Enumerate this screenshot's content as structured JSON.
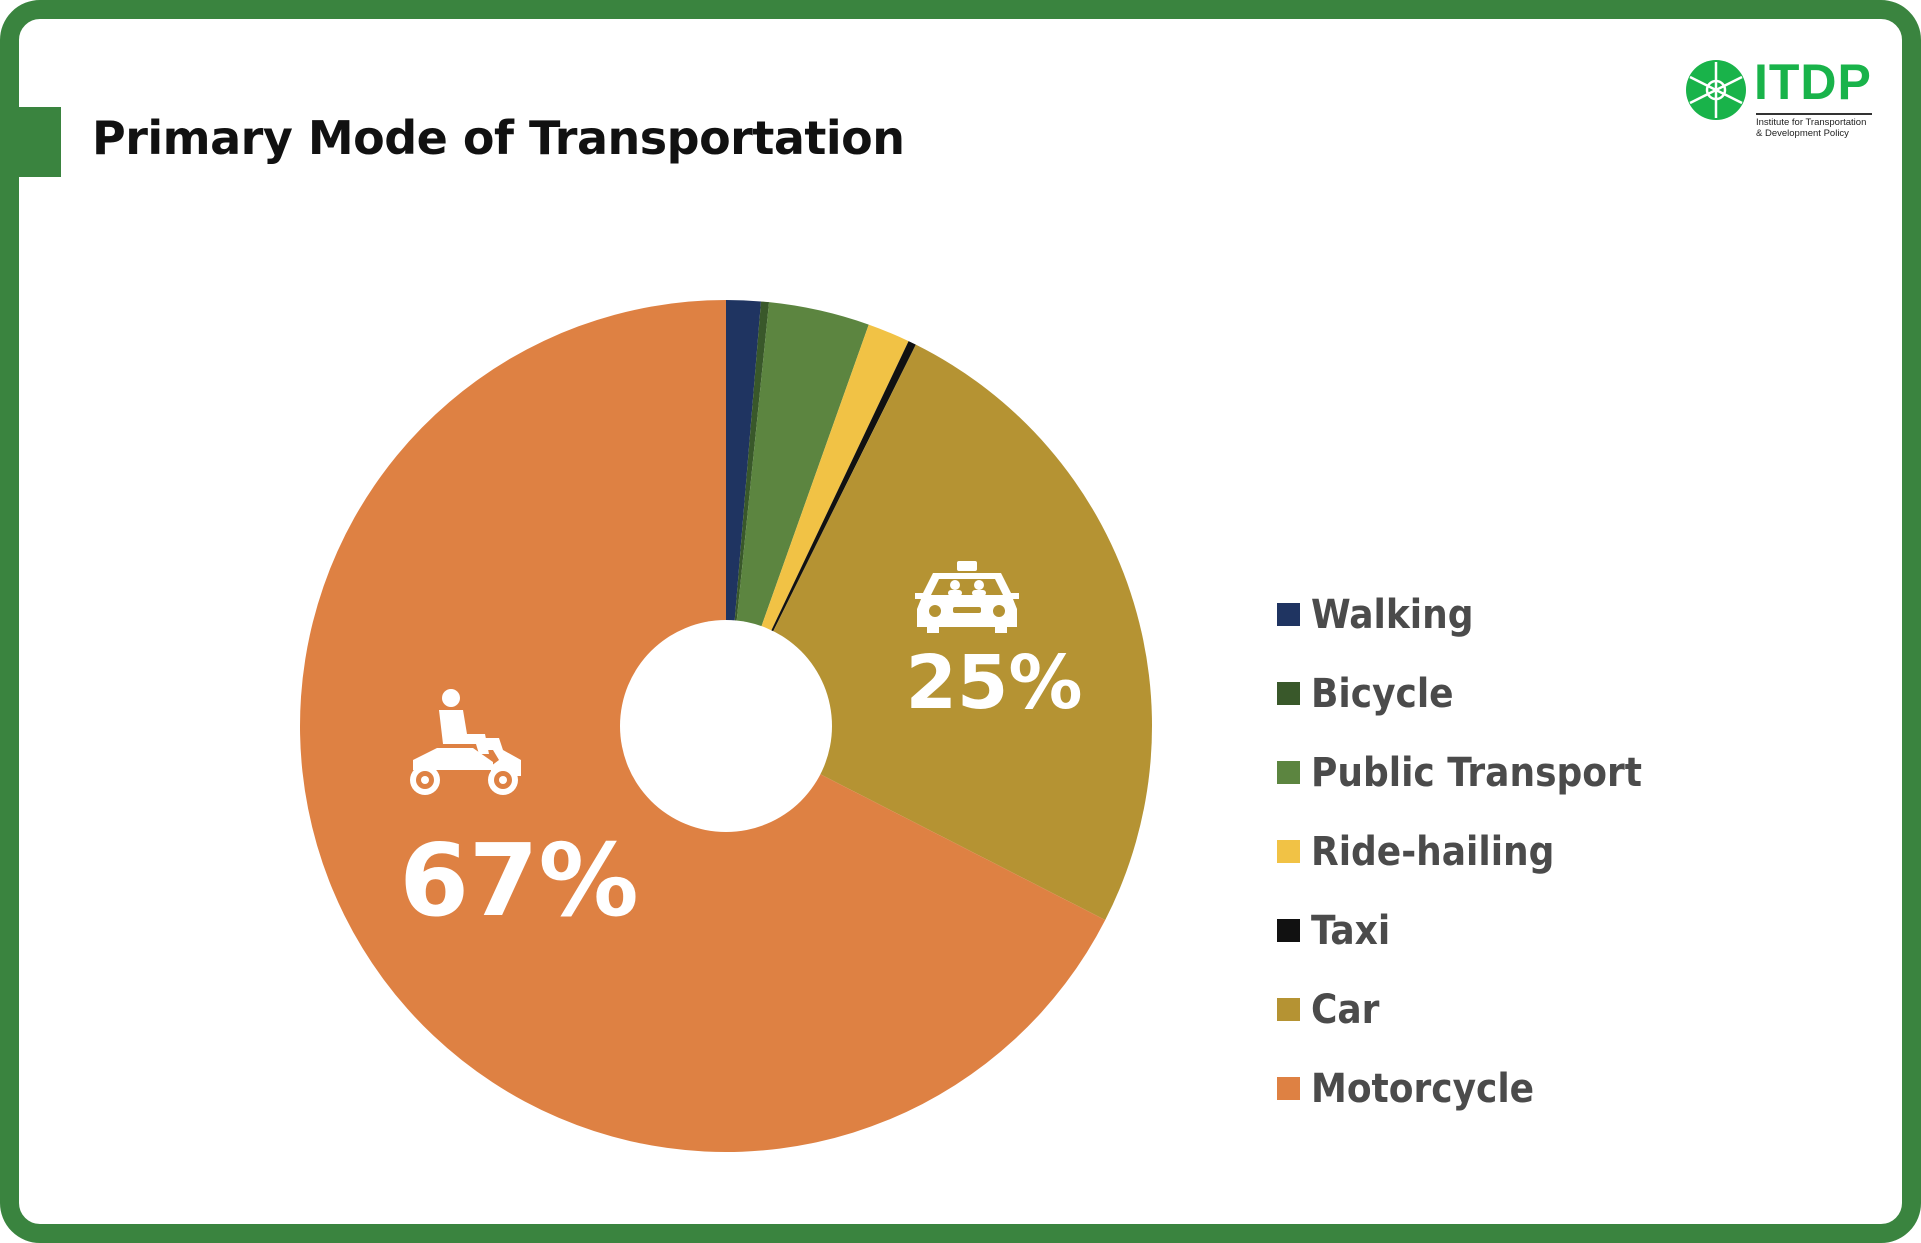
{
  "title": "Primary Mode of Transportation",
  "logo": {
    "text": "ITDP",
    "subtitle_line1": "Institute for Transportation",
    "subtitle_line2": "& Development Policy",
    "color": "#19b34a"
  },
  "frame_color": "#3a843f",
  "chart_data": {
    "type": "pie",
    "donut": true,
    "title": "Primary Mode of Transportation",
    "legend_position": "right",
    "slices": [
      {
        "label": "Walking",
        "value": 1.3,
        "color": "#1f3461"
      },
      {
        "label": "Bicycle",
        "value": 0.3,
        "color": "#39582a"
      },
      {
        "label": "Public Transport",
        "value": 3.8,
        "color": "#5c8540"
      },
      {
        "label": "Ride-hailing",
        "value": 1.6,
        "color": "#f1c245"
      },
      {
        "label": "Taxi",
        "value": 0.3,
        "color": "#111111"
      },
      {
        "label": "Car",
        "value": 25,
        "color": "#b59333",
        "data_label": "25%",
        "icon": "car-icon"
      },
      {
        "label": "Motorcycle",
        "value": 67,
        "color": "#de8143",
        "data_label": "67%",
        "icon": "motorcycle-icon"
      }
    ]
  }
}
